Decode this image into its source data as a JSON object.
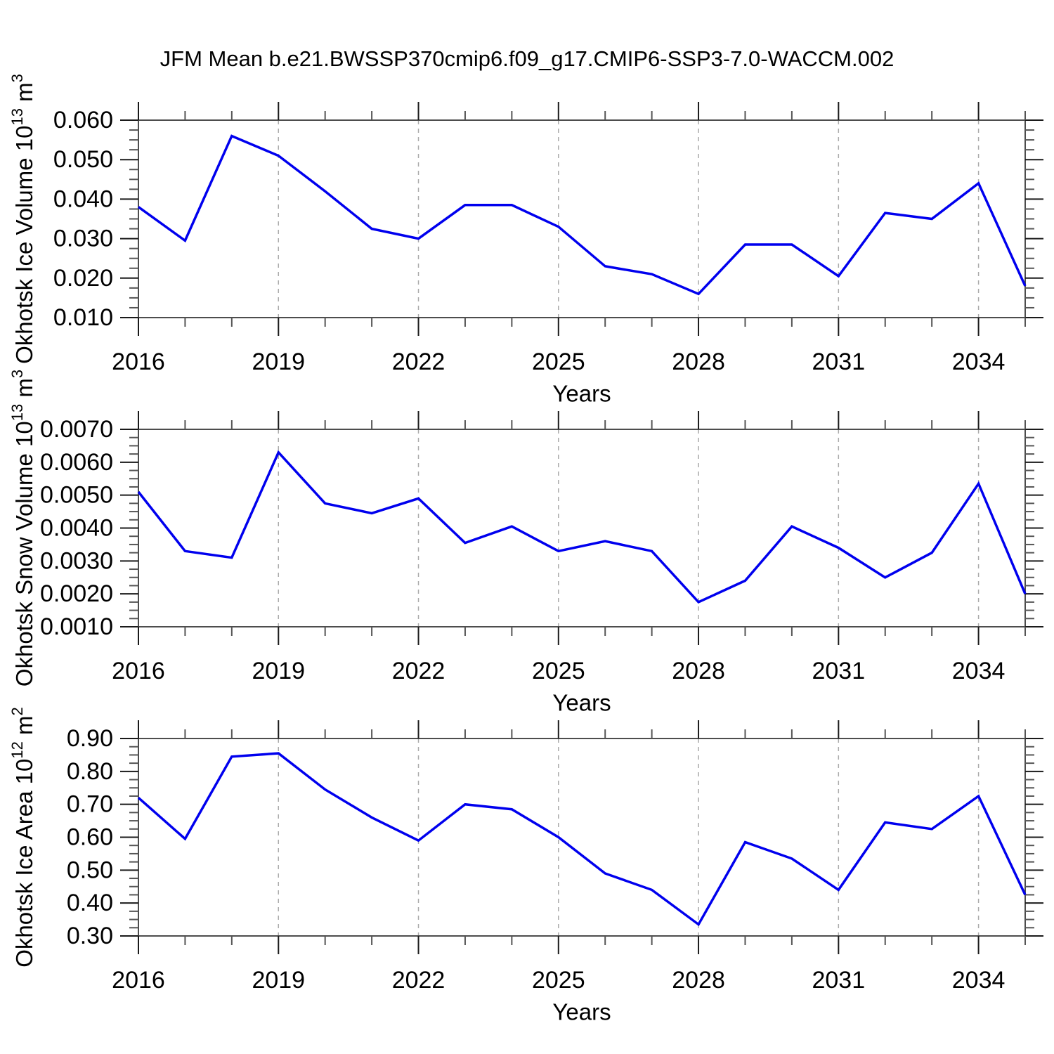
{
  "page": {
    "title": "JFM Mean b.e21.BWSSP370cmip6.f09_g17.CMIP6-SSP3-7.0-WACCM.002"
  },
  "style": {
    "line_color": "#0000ee",
    "frame_color": "#4d4d4d",
    "major_tick_color": "#1a1a1a",
    "minor_tick_color": "#555555",
    "grid_color": "#aaaaaa",
    "text_color": "#000000"
  },
  "chart_data": [
    {
      "type": "line",
      "ylabel": "Okhotsk Ice Volume 10^13 m^3",
      "ylabel_segments": [
        {
          "t": "Okhotsk Ice Volume 10",
          "sup": false
        },
        {
          "t": "13",
          "sup": true
        },
        {
          "t": " m",
          "sup": false
        },
        {
          "t": "3",
          "sup": true
        }
      ],
      "xlabel": "Years",
      "x": [
        2016,
        2017,
        2018,
        2019,
        2020,
        2021,
        2022,
        2023,
        2024,
        2025,
        2026,
        2027,
        2028,
        2029,
        2030,
        2031,
        2032,
        2033,
        2034,
        2035
      ],
      "values": [
        0.038,
        0.0295,
        0.056,
        0.051,
        0.042,
        0.0325,
        0.03,
        0.0385,
        0.0385,
        0.033,
        0.023,
        0.021,
        0.016,
        0.0285,
        0.0285,
        0.0205,
        0.0365,
        0.035,
        0.044,
        0.018
      ],
      "xlim": [
        2016,
        2035
      ],
      "ylim": [
        0.01,
        0.06
      ],
      "ytick_step": 0.01,
      "yminor_step": 0.0025,
      "ytick_decimals": 3,
      "xticks": [
        2016,
        2019,
        2022,
        2025,
        2028,
        2031,
        2034
      ],
      "xminor_step": 1,
      "grid_x": [
        2019,
        2022,
        2025,
        2028,
        2031,
        2034
      ],
      "grid_on": true,
      "legend": null
    },
    {
      "type": "line",
      "ylabel": "Okhotsk Snow Volume 10^13 m^3",
      "ylabel_segments": [
        {
          "t": "Okhotsk Snow Volume 10",
          "sup": false
        },
        {
          "t": "13",
          "sup": true
        },
        {
          "t": " m",
          "sup": false
        },
        {
          "t": "3",
          "sup": true
        }
      ],
      "xlabel": "Years",
      "x": [
        2016,
        2017,
        2018,
        2019,
        2020,
        2021,
        2022,
        2023,
        2024,
        2025,
        2026,
        2027,
        2028,
        2029,
        2030,
        2031,
        2032,
        2033,
        2034,
        2035
      ],
      "values": [
        0.0051,
        0.0033,
        0.0031,
        0.0063,
        0.00475,
        0.00445,
        0.0049,
        0.00355,
        0.00405,
        0.0033,
        0.0036,
        0.0033,
        0.00175,
        0.0024,
        0.00405,
        0.0034,
        0.0025,
        0.00325,
        0.00535,
        0.002
      ],
      "xlim": [
        2016,
        2035
      ],
      "ylim": [
        0.001,
        0.007
      ],
      "ytick_step": 0.001,
      "yminor_step": 0.00025,
      "ytick_decimals": 4,
      "xticks": [
        2016,
        2019,
        2022,
        2025,
        2028,
        2031,
        2034
      ],
      "xminor_step": 1,
      "grid_x": [
        2019,
        2022,
        2025,
        2028,
        2031,
        2034
      ],
      "grid_on": true,
      "legend": null
    },
    {
      "type": "line",
      "ylabel": "Okhotsk Ice Area 10^12 m^2",
      "ylabel_segments": [
        {
          "t": "Okhotsk Ice Area 10",
          "sup": false
        },
        {
          "t": "12",
          "sup": true
        },
        {
          "t": " m",
          "sup": false
        },
        {
          "t": "2",
          "sup": true
        }
      ],
      "xlabel": "Years",
      "x": [
        2016,
        2017,
        2018,
        2019,
        2020,
        2021,
        2022,
        2023,
        2024,
        2025,
        2026,
        2027,
        2028,
        2029,
        2030,
        2031,
        2032,
        2033,
        2034,
        2035
      ],
      "values": [
        0.72,
        0.595,
        0.845,
        0.855,
        0.745,
        0.66,
        0.59,
        0.7,
        0.685,
        0.6,
        0.49,
        0.44,
        0.335,
        0.585,
        0.535,
        0.44,
        0.645,
        0.625,
        0.725,
        0.425
      ],
      "xlim": [
        2016,
        2035
      ],
      "ylim": [
        0.3,
        0.9
      ],
      "ytick_step": 0.1,
      "yminor_step": 0.025,
      "ytick_decimals": 2,
      "xticks": [
        2016,
        2019,
        2022,
        2025,
        2028,
        2031,
        2034
      ],
      "xminor_step": 1,
      "grid_x": [
        2019,
        2022,
        2025,
        2028,
        2031,
        2034
      ],
      "grid_on": true,
      "legend": null
    }
  ]
}
